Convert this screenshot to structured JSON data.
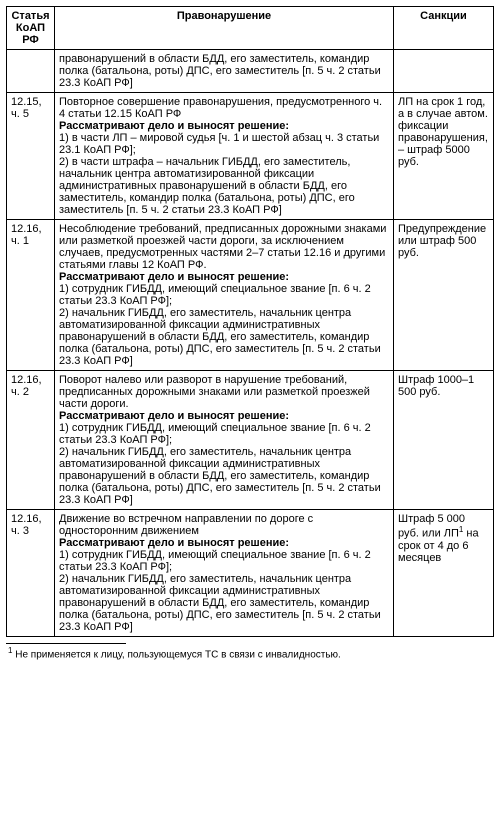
{
  "table": {
    "headers": {
      "article": "Статья КоАП РФ",
      "offense": "Правонарушение",
      "sanction": "Санкции"
    },
    "rows": [
      {
        "article": "",
        "offense_plain": "правонарушений в области БДД, его заместитель, командир полка (батальона, роты) ДПС, его заместитель [п. 5 ч. 2 статьи 23.3 КоАП РФ]",
        "sanction": ""
      },
      {
        "article": "12.15, ч. 5",
        "lead": "Повторное совершение правонарушения, предусмотренного ч. 4 статьи 12.15 КоАП РФ",
        "subhead": "Рассматривают дело и выносят решение:",
        "item1": "1) в части ЛП – мировой судья [ч. 1 и шестой абзац ч. 3 статьи 23.1 КоАП РФ];",
        "item2": "2) в части штрафа – начальник ГИБДД, его заместитель, начальник центра автоматизированной фиксации административных правонарушений в области БДД, его заместитель, командир полка (батальона, роты) ДПС, его заместитель [п. 5 ч. 2 статьи 23.3 КоАП РФ]",
        "sanction": "ЛП на срок 1 год, а в случае автом. фиксации правонарушения, – штраф 5000 руб."
      },
      {
        "article": "12.16, ч. 1",
        "lead": "Несоблюдение требований, предписанных дорожными знаками или разметкой проезжей части дороги, за исключением случаев, предусмотренных частями 2–7 статьи 12.16 и другими статьями главы 12 КоАП РФ.",
        "subhead": "Рассматривают дело и выносят решение:",
        "item1": "1) сотрудник ГИБДД, имеющий специальное звание [п. 6 ч. 2 статьи 23.3 КоАП РФ];",
        "item2": "2) начальник ГИБДД, его заместитель, начальник центра автоматизированной фиксации административных правонарушений в области БДД, его заместитель, командир полка (батальона, роты) ДПС, его заместитель [п. 5 ч. 2 статьи 23.3 КоАП РФ]",
        "sanction": "Предупреждение или штраф 500 руб."
      },
      {
        "article": "12.16, ч. 2",
        "lead": "Поворот налево или разворот в нарушение требований, предписанных дорожными знаками или разметкой проезжей части дороги.",
        "subhead": "Рассматривают дело и выносят решение:",
        "item1": "1) сотрудник ГИБДД, имеющий специальное звание [п. 6 ч. 2 статьи 23.3 КоАП РФ];",
        "item2": "2) начальник ГИБДД, его заместитель, начальник центра автоматизированной фиксации административных правонарушений в области БДД, его заместитель, командир полка (батальона, роты) ДПС, его заместитель [п. 5 ч. 2 статьи 23.3 КоАП РФ]",
        "sanction": "Штраф 1000–1 500 руб."
      },
      {
        "article": "12.16, ч. 3",
        "lead": "Движение во встречном направлении по дороге с односторонним движением",
        "subhead": "Рассматривают дело и выносят решение:",
        "item1": "1) сотрудник ГИБДД, имеющий специальное звание [п. 6 ч. 2 статьи 23.3 КоАП РФ];",
        "item2": "2) начальник ГИБДД, его заместитель, начальник центра автоматизированной фиксации административных правонарушений в области БДД, его заместитель, командир полка (батальона, роты) ДПС, его заместитель [п. 5 ч. 2 статьи 23.3 КоАП РФ]",
        "sanction_pre": "Штраф 5 000 руб. или ЛП",
        "sanction_sup": "1",
        "sanction_post": " на срок от 4 до 6 месяцев"
      }
    ]
  },
  "footnote": {
    "marker": "1",
    "text": "  Не применяется к лицу, пользующемуся ТС в связи с инвалидностью."
  }
}
